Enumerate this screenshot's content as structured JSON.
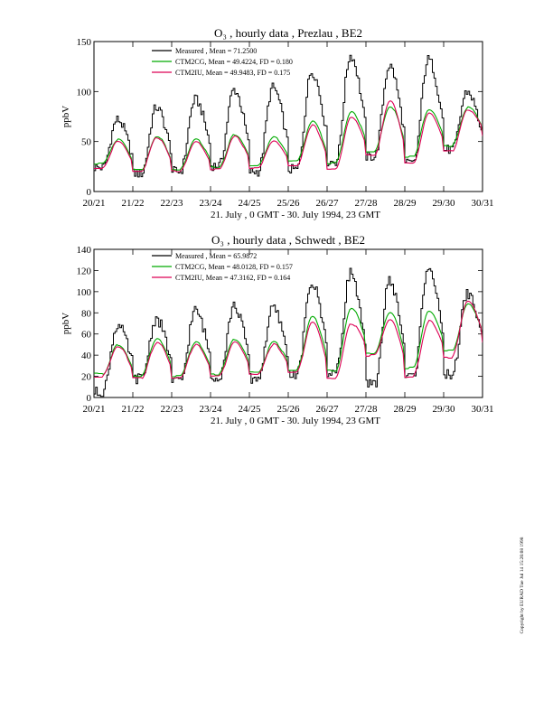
{
  "figure_credit": "Copyright by EURAD Tue Jul 14 15:26:08 1998",
  "chart_data": [
    {
      "type": "line",
      "title": "O₃ , hourly data , Prezlau , BE2",
      "xlabel": "21. July , 0 GMT - 30. July 1994, 23 GMT",
      "ylabel": "ppbV",
      "xlim": [
        0,
        240
      ],
      "ylim": [
        0,
        150
      ],
      "x_ticks": [
        0,
        24,
        48,
        72,
        96,
        120,
        144,
        168,
        192,
        216,
        240
      ],
      "x_tick_labels": [
        "20/21",
        "21/22",
        "22/23",
        "23/24",
        "24/25",
        "25/26",
        "26/27",
        "27/28",
        "28/29",
        "29/30",
        "30/31"
      ],
      "y_ticks": [
        0,
        50,
        100,
        150
      ],
      "grid": false,
      "legend_position": "top-center",
      "series": [
        {
          "name": "Measured",
          "legend": "Measured      , Mean = 71.2500",
          "color": "#000000",
          "style": "step",
          "mean": 71.25,
          "peaks": [
            72,
            84,
            92,
            102,
            104,
            120,
            136,
            126,
            132,
            100
          ],
          "mins": [
            24,
            18,
            20,
            26,
            20,
            22,
            30,
            35,
            28,
            42,
            40
          ]
        },
        {
          "name": "CTM2CG",
          "legend": "CTM2CG, Mean = 49.4224, FD = 0.180",
          "color": "#00aa00",
          "style": "line",
          "mean": 49.4224,
          "fd": 0.18,
          "peaks": [
            52,
            55,
            52,
            57,
            54,
            70,
            80,
            85,
            82,
            84,
            70
          ],
          "mins": [
            28,
            22,
            22,
            24,
            26,
            30,
            28,
            40,
            35,
            46,
            58
          ]
        },
        {
          "name": "CTM2IU",
          "legend": "CTM2IU, Mean = 49.9483, FD = 0.175",
          "color": "#dd0055",
          "style": "line",
          "mean": 49.9483,
          "fd": 0.175,
          "peaks": [
            50,
            54,
            50,
            55,
            50,
            66,
            75,
            90,
            78,
            82,
            68
          ],
          "mins": [
            24,
            20,
            20,
            22,
            24,
            26,
            22,
            36,
            28,
            40,
            56
          ]
        }
      ]
    },
    {
      "type": "line",
      "title": "O₃ , hourly data , Schwedt , BE2",
      "xlabel": "21. July , 0 GMT - 30. July 1994, 23 GMT",
      "ylabel": "ppbV",
      "xlim": [
        0,
        240
      ],
      "ylim": [
        0,
        140
      ],
      "x_ticks": [
        0,
        24,
        48,
        72,
        96,
        120,
        144,
        168,
        192,
        216,
        240
      ],
      "x_tick_labels": [
        "20/21",
        "21/22",
        "22/23",
        "23/24",
        "24/25",
        "25/26",
        "26/27",
        "27/28",
        "28/29",
        "29/30",
        "30/31"
      ],
      "y_ticks": [
        0,
        20,
        40,
        60,
        80,
        100,
        120,
        140
      ],
      "grid": false,
      "legend_position": "top-center",
      "series": [
        {
          "name": "Measured",
          "legend": "Measured      , Mean = 65.9872",
          "color": "#000000",
          "style": "step",
          "mean": 65.9872,
          "peaks": [
            68,
            74,
            82,
            86,
            84,
            108,
            118,
            110,
            124,
            98
          ],
          "mins": [
            5,
            18,
            15,
            20,
            18,
            22,
            24,
            12,
            20,
            22,
            42
          ]
        },
        {
          "name": "CTM2CG",
          "legend": "CTM2CG, Mean = 48.0128, FD = 0.157",
          "color": "#00aa00",
          "style": "line",
          "mean": 48.0128,
          "fd": 0.157,
          "peaks": [
            50,
            55,
            52,
            55,
            52,
            76,
            84,
            80,
            82,
            88,
            70
          ],
          "mins": [
            22,
            20,
            20,
            22,
            24,
            26,
            25,
            42,
            28,
            44,
            55
          ]
        },
        {
          "name": "CTM2IU",
          "legend": "CTM2IU, Mean = 47.3162, FD = 0.164",
          "color": "#dd0055",
          "style": "line",
          "mean": 47.3162,
          "fd": 0.164,
          "peaks": [
            48,
            52,
            50,
            53,
            50,
            72,
            70,
            74,
            72,
            92,
            66
          ],
          "mins": [
            20,
            18,
            18,
            20,
            22,
            24,
            18,
            40,
            20,
            38,
            52
          ]
        }
      ]
    }
  ]
}
